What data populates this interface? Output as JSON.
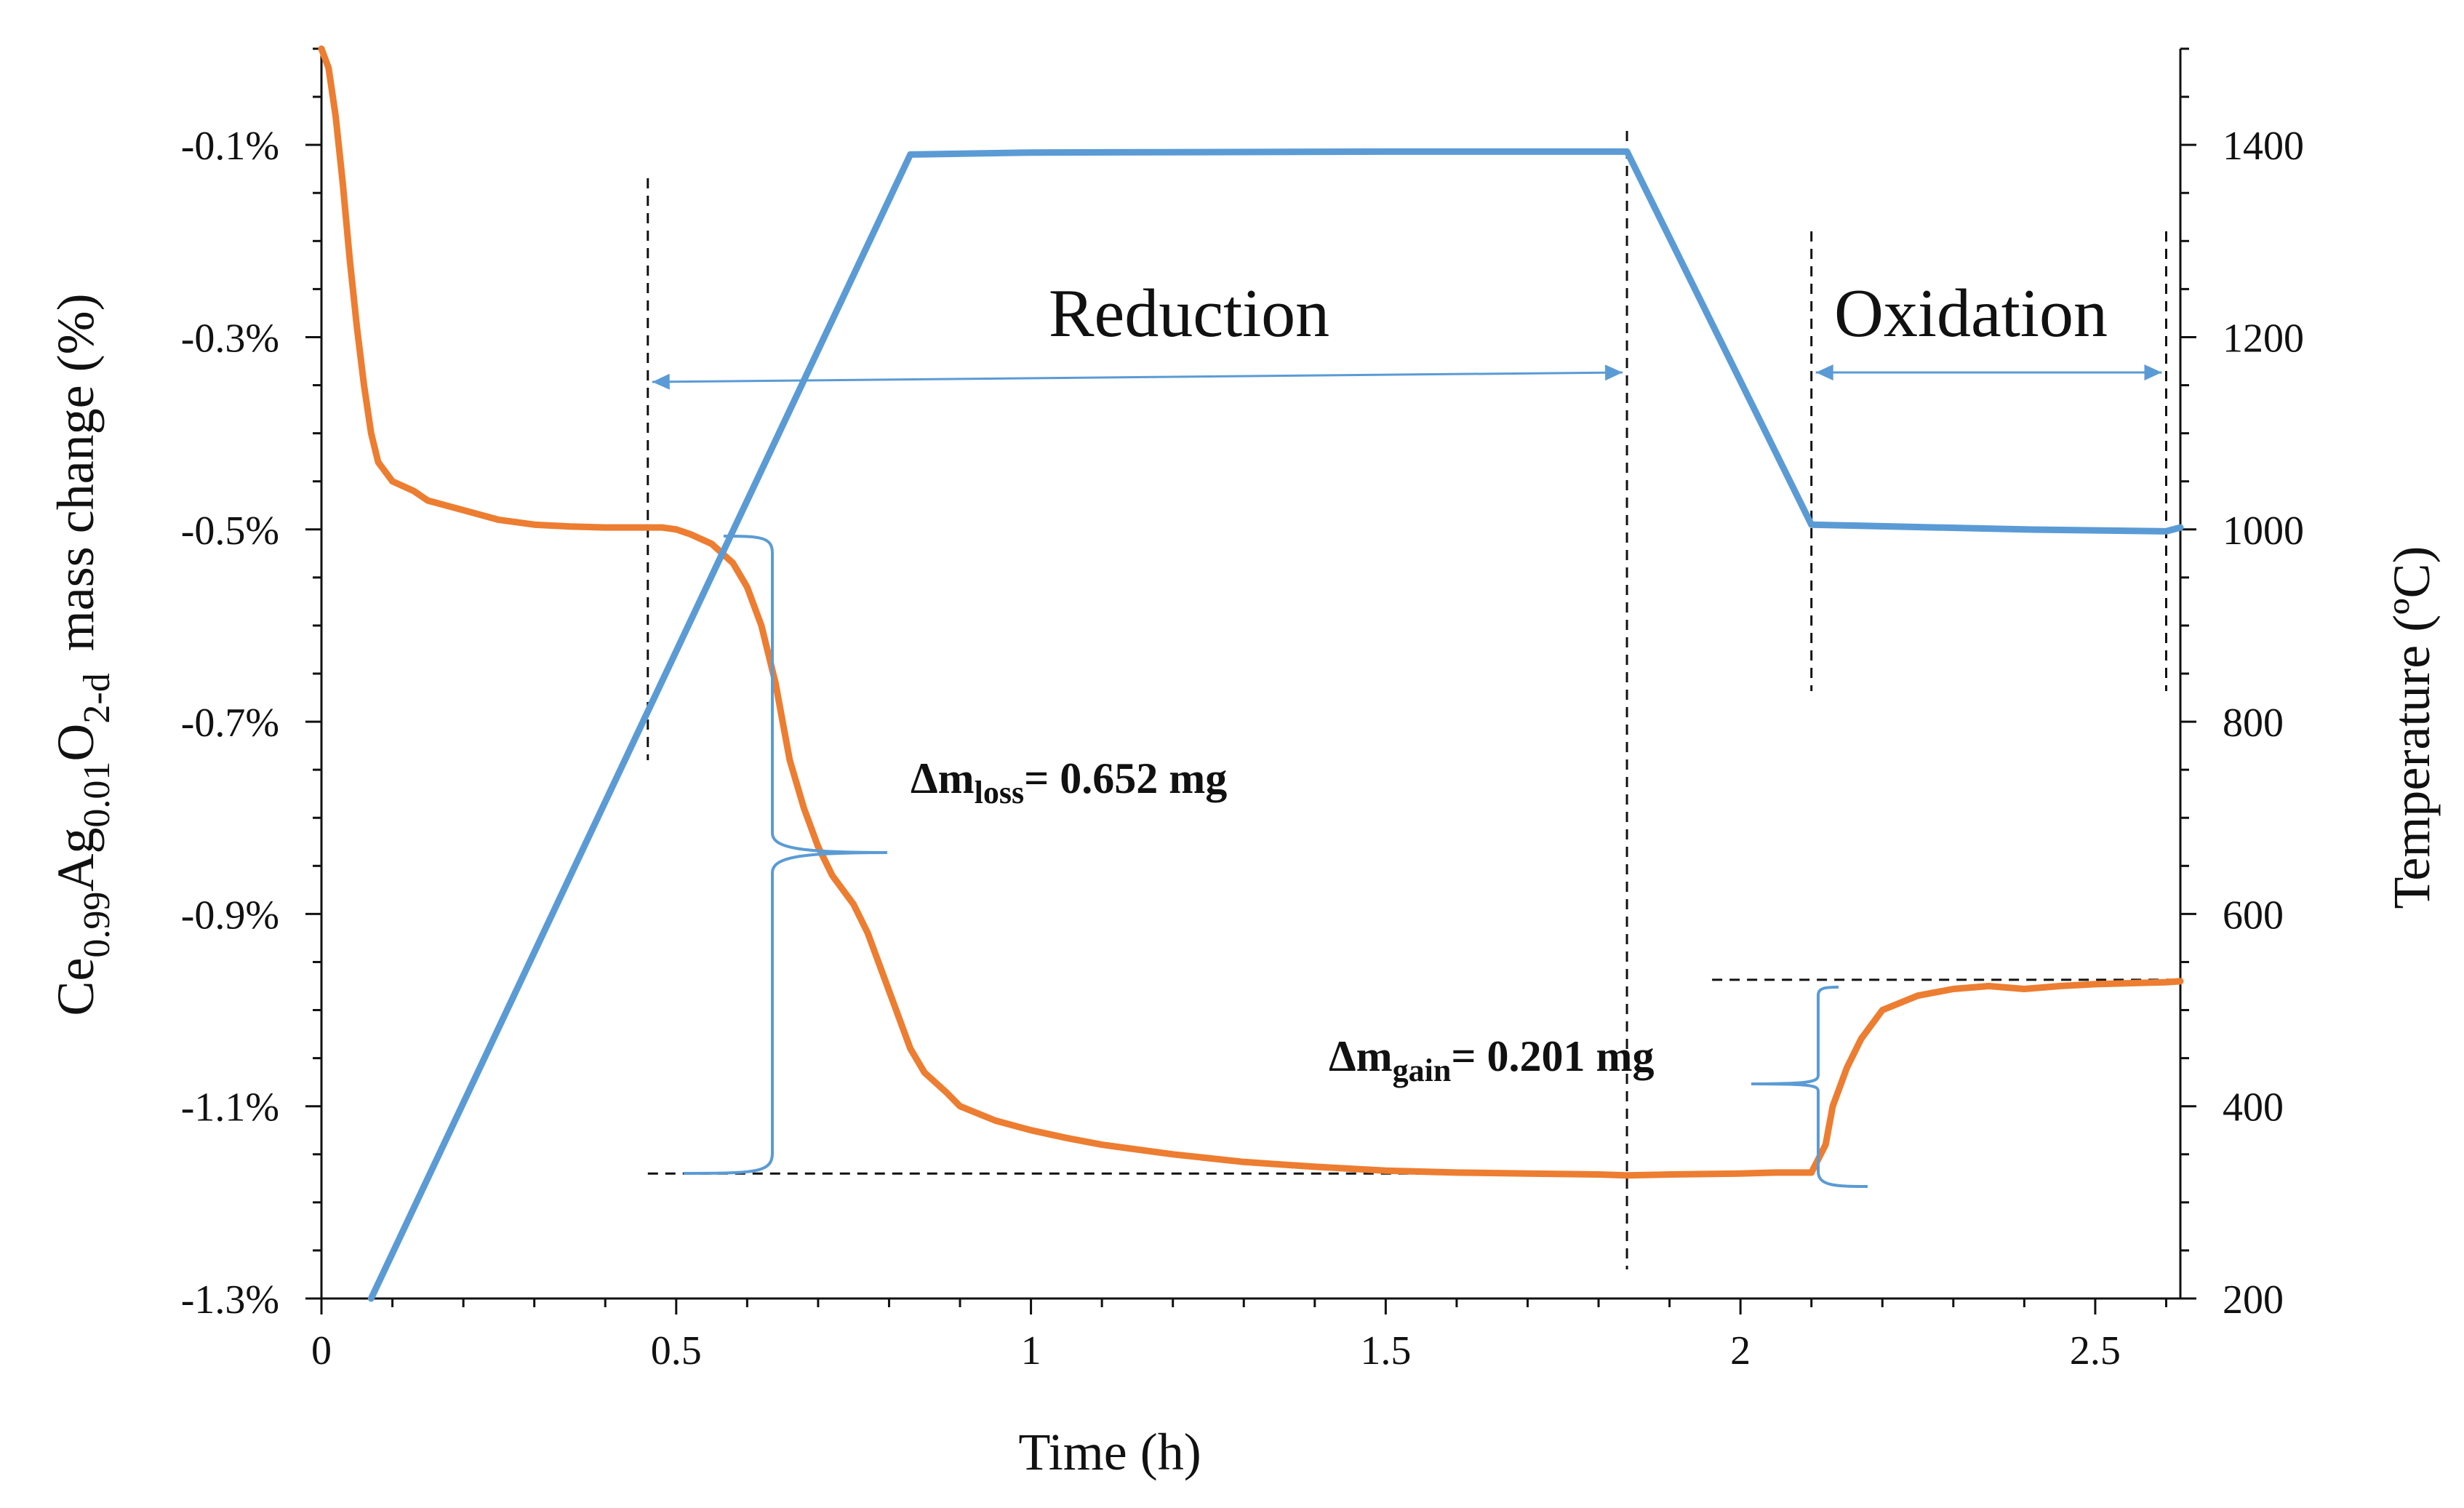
{
  "chart_data": {
    "type": "line",
    "x": {
      "label": "Time (h)",
      "range": [
        0,
        2.62
      ],
      "ticks": [
        0,
        0.5,
        1,
        1.5,
        2,
        2.5
      ],
      "tick_labels": [
        "0",
        "0.5",
        "1",
        "1.5",
        "2",
        "2.5"
      ]
    },
    "y_left": {
      "label_parts": [
        "Ce",
        "0.99",
        "Ag",
        "0.01",
        "O",
        "2-d",
        "mass change (%)"
      ],
      "range": [
        -1.3,
        0.0
      ],
      "ticks": [
        -1.3,
        -1.1,
        -0.9,
        -0.7,
        -0.5,
        -0.3,
        -0.1
      ],
      "tick_labels": [
        "-1.3%",
        "-1.1%",
        "-0.9%",
        "-0.7%",
        "-0.5%",
        "-0.3%",
        "-0.1%"
      ]
    },
    "y_right": {
      "label": "Temperature (ºC)",
      "range": [
        200,
        1500
      ],
      "ticks": [
        200,
        400,
        600,
        800,
        1000,
        1200,
        1400
      ],
      "tick_labels": [
        "200",
        "400",
        "600",
        "800",
        "1000",
        "1200",
        "1400"
      ]
    },
    "series": [
      {
        "axis": "left",
        "color": "#ED7D31",
        "points": [
          [
            0.0,
            0.0
          ],
          [
            0.01,
            -0.02
          ],
          [
            0.02,
            -0.07
          ],
          [
            0.03,
            -0.14
          ],
          [
            0.04,
            -0.22
          ],
          [
            0.05,
            -0.29
          ],
          [
            0.06,
            -0.35
          ],
          [
            0.07,
            -0.4
          ],
          [
            0.08,
            -0.43
          ],
          [
            0.09,
            -0.44
          ],
          [
            0.1,
            -0.45
          ],
          [
            0.13,
            -0.46
          ],
          [
            0.15,
            -0.47
          ],
          [
            0.2,
            -0.48
          ],
          [
            0.25,
            -0.49
          ],
          [
            0.3,
            -0.495
          ],
          [
            0.35,
            -0.497
          ],
          [
            0.4,
            -0.498
          ],
          [
            0.45,
            -0.498
          ],
          [
            0.48,
            -0.498
          ],
          [
            0.5,
            -0.5
          ],
          [
            0.52,
            -0.505
          ],
          [
            0.55,
            -0.515
          ],
          [
            0.58,
            -0.535
          ],
          [
            0.6,
            -0.56
          ],
          [
            0.62,
            -0.6
          ],
          [
            0.64,
            -0.66
          ],
          [
            0.65,
            -0.7
          ],
          [
            0.66,
            -0.74
          ],
          [
            0.68,
            -0.79
          ],
          [
            0.7,
            -0.83
          ],
          [
            0.72,
            -0.86
          ],
          [
            0.75,
            -0.89
          ],
          [
            0.77,
            -0.92
          ],
          [
            0.79,
            -0.96
          ],
          [
            0.81,
            -1.0
          ],
          [
            0.83,
            -1.04
          ],
          [
            0.85,
            -1.065
          ],
          [
            0.88,
            -1.085
          ],
          [
            0.9,
            -1.1
          ],
          [
            0.95,
            -1.115
          ],
          [
            1.0,
            -1.125
          ],
          [
            1.05,
            -1.133
          ],
          [
            1.1,
            -1.14
          ],
          [
            1.2,
            -1.15
          ],
          [
            1.3,
            -1.158
          ],
          [
            1.4,
            -1.163
          ],
          [
            1.5,
            -1.167
          ],
          [
            1.6,
            -1.169
          ],
          [
            1.7,
            -1.17
          ],
          [
            1.8,
            -1.171
          ],
          [
            1.84,
            -1.172
          ],
          [
            1.9,
            -1.171
          ],
          [
            2.0,
            -1.17
          ],
          [
            2.05,
            -1.169
          ],
          [
            2.1,
            -1.169
          ],
          [
            2.12,
            -1.14
          ],
          [
            2.13,
            -1.1
          ],
          [
            2.15,
            -1.06
          ],
          [
            2.17,
            -1.03
          ],
          [
            2.2,
            -1.0
          ],
          [
            2.25,
            -0.985
          ],
          [
            2.3,
            -0.978
          ],
          [
            2.35,
            -0.975
          ],
          [
            2.4,
            -0.978
          ],
          [
            2.45,
            -0.975
          ],
          [
            2.5,
            -0.973
          ],
          [
            2.55,
            -0.972
          ],
          [
            2.6,
            -0.971
          ],
          [
            2.62,
            -0.97
          ]
        ]
      },
      {
        "axis": "right",
        "color": "#5B9BD5",
        "points": [
          [
            0.07,
            200
          ],
          [
            0.83,
            1390
          ],
          [
            1.0,
            1392
          ],
          [
            1.5,
            1393
          ],
          [
            1.84,
            1393
          ],
          [
            2.1,
            1005
          ],
          [
            2.4,
            1000
          ],
          [
            2.6,
            998
          ],
          [
            2.62,
            1002
          ]
        ]
      }
    ],
    "annotations": {
      "reduction": "Reduction",
      "oxidation": "Oxidation",
      "mloss_prefix": "Δm",
      "mloss_sub": "loss",
      "mloss_value": "= 0.652  mg",
      "mgain_prefix": "Δm",
      "mgain_sub": "gain",
      "mgain_value": "= 0.201 mg"
    },
    "guides": {
      "vertical_x": [
        0.46,
        1.84,
        2.1,
        2.6
      ],
      "horizontal_y": [
        -1.17,
        -0.97
      ]
    }
  }
}
